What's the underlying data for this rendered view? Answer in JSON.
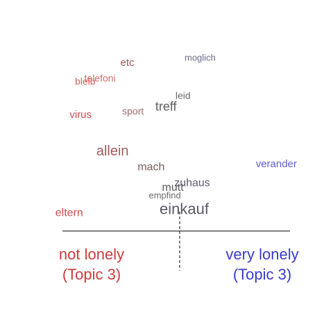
{
  "chart_data": {
    "type": "scatter",
    "title": "",
    "xlabel": "",
    "ylabel": "",
    "xlim": [
      -1,
      1
    ],
    "ylim": [
      0,
      1
    ],
    "axis_labels": {
      "left": {
        "line1": "not lonely",
        "line2": "(Topic 3)",
        "color": "#cc3b3b"
      },
      "right": {
        "line1": "very lonely",
        "line2": "(Topic 3)",
        "color": "#3a3acc"
      }
    },
    "colors": {
      "axis": "#000000"
    },
    "words": [
      {
        "word": "moglich",
        "x": 0.21,
        "y": 1.0,
        "color": "#6c6a8c",
        "size": 13
      },
      {
        "word": "etc",
        "x": -0.43,
        "y": 0.97,
        "color": "#9c5656",
        "size": 15
      },
      {
        "word": "telefoni",
        "x": -0.67,
        "y": 0.87,
        "color": "#d06a6a",
        "size": 14
      },
      {
        "word": "bleib",
        "x": -0.8,
        "y": 0.85,
        "color": "#d86060",
        "size": 14
      },
      {
        "word": "leid",
        "x": 0.06,
        "y": 0.76,
        "color": "#6a6a6a",
        "size": 14
      },
      {
        "word": "treff",
        "x": -0.09,
        "y": 0.69,
        "color": "#5c5c5c",
        "size": 18
      },
      {
        "word": "sport",
        "x": -0.38,
        "y": 0.66,
        "color": "#a06a6a",
        "size": 14
      },
      {
        "word": "virus",
        "x": -0.84,
        "y": 0.64,
        "color": "#d24c4c",
        "size": 15
      },
      {
        "word": "allein",
        "x": -0.56,
        "y": 0.41,
        "color": "#a55a5a",
        "size": 20
      },
      {
        "word": "verander",
        "x": 0.88,
        "y": 0.33,
        "color": "#5c5cd0",
        "size": 15
      },
      {
        "word": "mach",
        "x": -0.22,
        "y": 0.31,
        "color": "#7a5c5c",
        "size": 16
      },
      {
        "word": "zuhaus",
        "x": 0.14,
        "y": 0.21,
        "color": "#5c5c70",
        "size": 16
      },
      {
        "word": "mutt",
        "x": -0.03,
        "y": 0.18,
        "color": "#5c5c5c",
        "size": 16
      },
      {
        "word": "empfind",
        "x": -0.1,
        "y": 0.13,
        "color": "#6a6a6a",
        "size": 13
      },
      {
        "word": "einkauf",
        "x": 0.07,
        "y": 0.04,
        "color": "#5a5a62",
        "size": 22
      },
      {
        "word": "eltern",
        "x": -0.94,
        "y": 0.02,
        "color": "#d04c4c",
        "size": 16
      }
    ]
  }
}
